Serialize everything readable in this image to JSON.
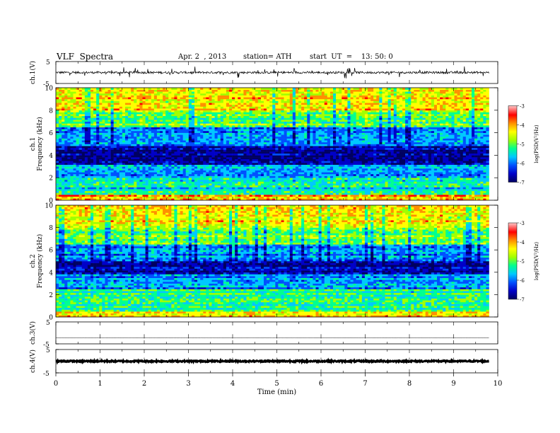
{
  "header": {
    "title": "VLF  Spectra",
    "date": "Apr. 2  , 2013",
    "station": "station= ATH",
    "start": "start  UT  =    13: 50: 0"
  },
  "colors": {
    "spectrum_scale": [
      "#000060",
      "#0000c8",
      "#0050ff",
      "#00c8ff",
      "#00ff90",
      "#a0ff00",
      "#ffff00",
      "#ff9000",
      "#ff0000",
      "#ffc8c8"
    ],
    "trace": "#000000"
  },
  "chart_data": [
    {
      "type": "line",
      "panel": "ch1",
      "ylabel": "ch.1(V)",
      "ytick_labels": [
        "5",
        "-5"
      ],
      "ylim": [
        -5,
        5
      ],
      "xlim": [
        0,
        9.8
      ],
      "baseline": 0,
      "noise_amplitude": 0.5,
      "spike_amplitude": 2.5
    },
    {
      "type": "heatmap",
      "panel": "ch1-spectrogram",
      "title": "ch.1",
      "ylabel": "Frequency  (kHz)",
      "yticks": [
        0,
        2,
        4,
        6,
        8,
        10
      ],
      "ylim": [
        0,
        10
      ],
      "xlim": [
        0,
        9.8
      ],
      "value_label": "log(PSD(V²/Hz)",
      "value_range": [
        -7,
        -3
      ],
      "colorbar_ticks": [
        -3,
        -4,
        -5,
        -6,
        -7
      ],
      "bands_kHz": [
        {
          "from": 0,
          "to": 0.5,
          "log_psd": -4.2
        },
        {
          "from": 0.5,
          "to": 2.0,
          "log_psd": -5.4
        },
        {
          "from": 2.0,
          "to": 3.2,
          "log_psd": -5.7
        },
        {
          "from": 3.2,
          "to": 4.8,
          "log_psd": -6.6
        },
        {
          "from": 4.8,
          "to": 6.5,
          "log_psd": -5.9
        },
        {
          "from": 6.5,
          "to": 8.0,
          "log_psd": -5.0
        },
        {
          "from": 8.0,
          "to": 10.0,
          "log_psd": -4.3
        }
      ]
    },
    {
      "type": "heatmap",
      "panel": "ch2-spectrogram",
      "title": "ch.2",
      "ylabel": "Frequency  (kHz)",
      "yticks": [
        0,
        2,
        4,
        6,
        8,
        10
      ],
      "ylim": [
        0,
        10
      ],
      "xlim": [
        0,
        9.8
      ],
      "value_label": "log(PSD(V²/Hz)",
      "value_range": [
        -7,
        -3
      ],
      "colorbar_ticks": [
        -3,
        -4,
        -5,
        -6,
        -7
      ],
      "bands_kHz": [
        {
          "from": 0,
          "to": 0.5,
          "log_psd": -4.3
        },
        {
          "from": 0.5,
          "to": 2.5,
          "log_psd": -5.2
        },
        {
          "from": 2.5,
          "to": 3.8,
          "log_psd": -5.8
        },
        {
          "from": 3.8,
          "to": 5.0,
          "log_psd": -6.5
        },
        {
          "from": 5.0,
          "to": 6.5,
          "log_psd": -5.8
        },
        {
          "from": 6.5,
          "to": 8.0,
          "log_psd": -5.0
        },
        {
          "from": 8.0,
          "to": 10.0,
          "log_psd": -4.4
        }
      ]
    },
    {
      "type": "line",
      "panel": "ch3",
      "ylabel": "ch.3(V)",
      "ytick_labels": [
        "5",
        "-5"
      ],
      "ylim": [
        -5,
        5
      ],
      "xlim": [
        0,
        9.8
      ],
      "baseline": -2.2,
      "noise_amplitude": 0.05
    },
    {
      "type": "line",
      "panel": "ch4",
      "ylabel": "ch.4(V)",
      "ytick_labels": [
        "5",
        "-5"
      ],
      "ylim": [
        -5,
        5
      ],
      "xlim": [
        0,
        9.8
      ],
      "baseline": 0,
      "noise_amplitude": 0.3
    }
  ],
  "xaxis": {
    "label": "Time  (min)",
    "ticks": [
      0,
      1,
      2,
      3,
      4,
      5,
      6,
      7,
      8,
      9,
      10
    ],
    "xlim": [
      0,
      10
    ]
  }
}
